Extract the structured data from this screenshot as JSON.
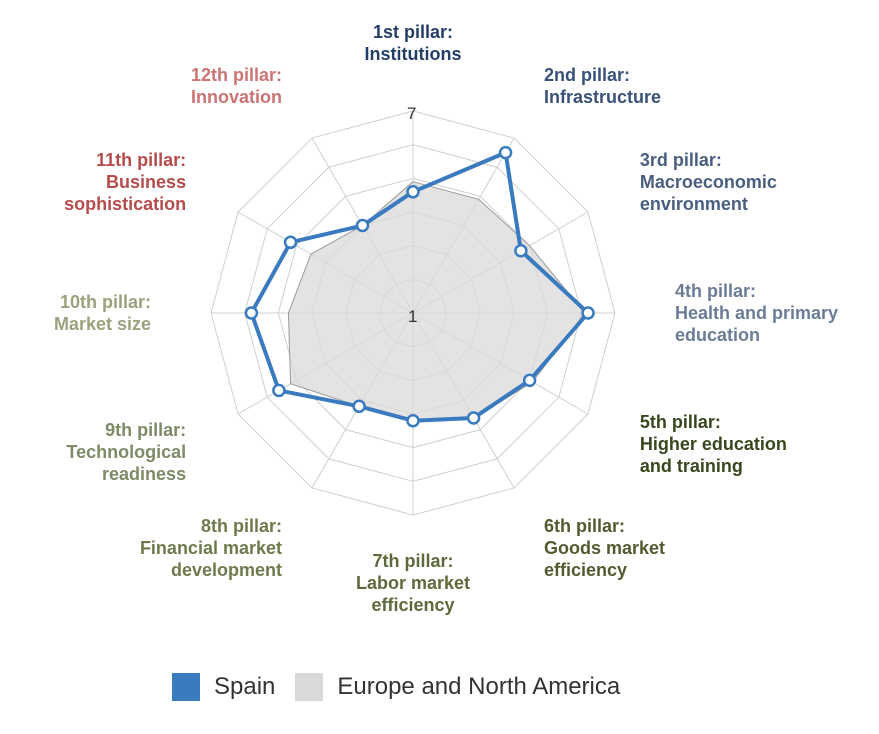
{
  "chart_data": {
    "type": "radar",
    "axis_min": 1,
    "axis_max": 7,
    "tick_labels": [
      "1",
      "7"
    ],
    "grid": true,
    "legend_position": "bottom",
    "categories": [
      {
        "line1": "1st pillar:",
        "lines": [
          "Institutions"
        ],
        "color": "#253e66"
      },
      {
        "line1": "2nd pillar:",
        "lines": [
          "Infrastructure"
        ],
        "color": "#3a5178"
      },
      {
        "line1": "3rd pillar:",
        "lines": [
          "Macroeconomic",
          "environment"
        ],
        "color": "#4a5f80"
      },
      {
        "line1": "4th pillar:",
        "lines": [
          "Health and primary",
          "education"
        ],
        "color": "#6b7d96"
      },
      {
        "line1": "5th pillar:",
        "lines": [
          "Higher education",
          "and training"
        ],
        "color": "#39471f"
      },
      {
        "line1": "6th pillar:",
        "lines": [
          "Goods market",
          "efficiency"
        ],
        "color": "#525b30"
      },
      {
        "line1": "7th pillar:",
        "lines": [
          "Labor market",
          "efficiency"
        ],
        "color": "#5e6a3c"
      },
      {
        "line1": "8th pillar:",
        "lines": [
          "Financial market",
          "development"
        ],
        "color": "#6f7a4c"
      },
      {
        "line1": "9th pillar:",
        "lines": [
          "Technological",
          "readiness"
        ],
        "color": "#7f8a66"
      },
      {
        "line1": "10th pillar:",
        "lines": [
          "Market size"
        ],
        "color": "#9aa37e"
      },
      {
        "line1": "11th pillar:",
        "lines": [
          "Business",
          "sophistication"
        ],
        "color": "#b54c4c"
      },
      {
        "line1": "12th pillar:",
        "lines": [
          "Innovation"
        ],
        "color": "#cc7474"
      }
    ],
    "series": [
      {
        "name": "Europe and North America",
        "color": "#d9d9d9",
        "values": [
          4.9,
          4.9,
          5.0,
          6.1,
          5.1,
          4.6,
          4.2,
          4.2,
          5.2,
          4.7,
          4.5,
          4.0
        ]
      },
      {
        "name": "Spain",
        "color": "#3a7abf",
        "values": [
          4.6,
          6.5,
          4.7,
          6.2,
          5.0,
          4.6,
          4.2,
          4.2,
          5.6,
          5.8,
          5.2,
          4.0
        ]
      }
    ]
  }
}
